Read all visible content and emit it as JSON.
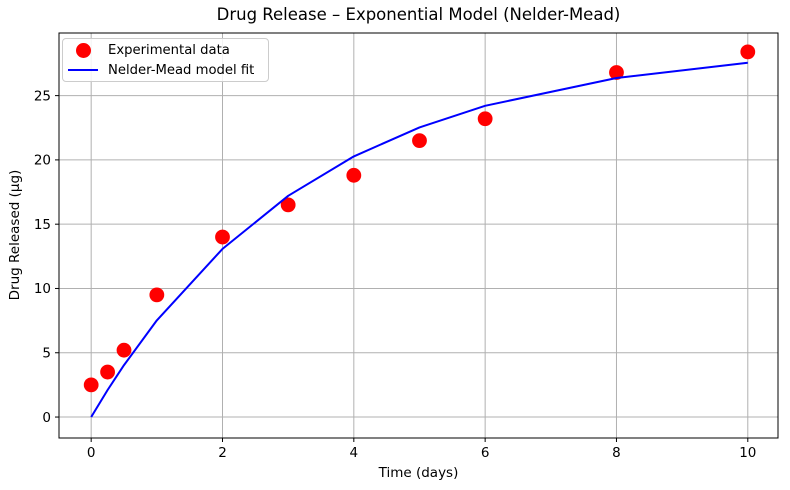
{
  "figure": {
    "title": "Drug Release – Exponential Model (Nelder-Mead)",
    "xlabel": "Time (days)",
    "ylabel": "Drug Released (µg)"
  },
  "legend": {
    "position": "upper left",
    "items": [
      {
        "label": "Experimental data",
        "marker": "circle",
        "color": "#ff0000"
      },
      {
        "label": "Nelder-Mead model fit",
        "marker": "line",
        "color": "#0000ff"
      }
    ]
  },
  "chart_data": {
    "type": "scatter",
    "title": "Drug Release – Exponential Model (Nelder-Mead)",
    "xlabel": "Time (days)",
    "ylabel": "Drug Released (µg)",
    "xlim": [
      -0.49,
      10.46
    ],
    "ylim": [
      -1.63,
      29.87
    ],
    "xticks": [
      0,
      2,
      4,
      6,
      8,
      10
    ],
    "yticks": [
      0,
      5,
      10,
      15,
      20,
      25
    ],
    "grid": true,
    "grid_color": "#b0b0b0",
    "legend_position": "upper left",
    "x": [
      0,
      0.25,
      0.5,
      1,
      2,
      3,
      4,
      5,
      6,
      8,
      10
    ],
    "series": [
      {
        "name": "Experimental data",
        "type": "scatter",
        "color": "#ff0000",
        "marker_radius": 7.4,
        "values": [
          2.5,
          3.5,
          5.2,
          9.5,
          14.0,
          16.5,
          18.8,
          21.5,
          23.2,
          26.8,
          28.4
        ]
      },
      {
        "name": "Nelder-Mead model fit",
        "type": "line",
        "color": "#0000ff",
        "line_width": 2,
        "values": [
          0,
          2.1,
          4.04,
          7.52,
          13.08,
          17.21,
          20.27,
          22.53,
          24.21,
          26.37,
          27.56
        ]
      }
    ]
  }
}
